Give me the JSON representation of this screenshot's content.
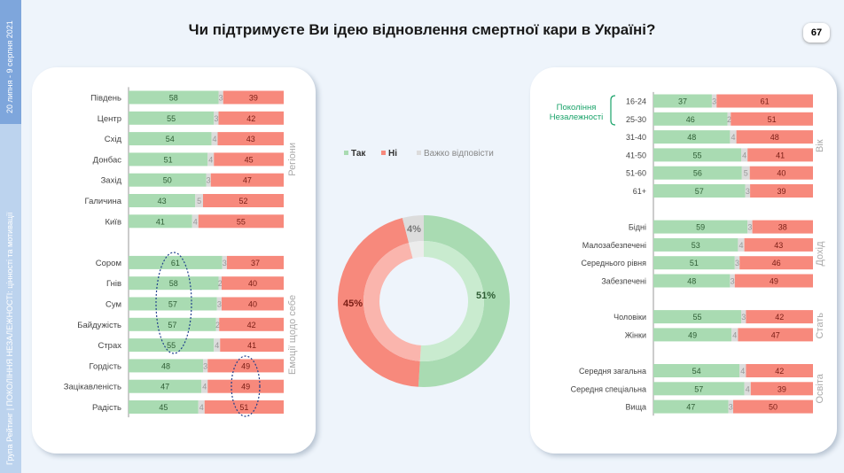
{
  "sidebar": {
    "dates": "20 липня - 9 серпня 2021",
    "footer": "Група Рейтинг | ПОКОЛІННЯ НЕЗАЛЕЖНОСТІ: цінності та мотивації"
  },
  "header": {
    "title": "Чи підтримуєте Ви ідею відновлення смертної кари в Україні?",
    "page_number": "67"
  },
  "colors": {
    "yes": "#a9dbb2",
    "no": "#f7897c",
    "hard": "#dcdcdc"
  },
  "annotation": {
    "generation_label_1": "Покоління",
    "generation_label_2": "Незалежності"
  },
  "chart_data": [
    {
      "type": "bar",
      "stacked": true,
      "orientation": "horizontal",
      "series_names": [
        "Так",
        "Важко відповісти",
        "Ні"
      ],
      "groups": [
        {
          "label": "Регіони",
          "rows": [
            {
              "label": "Південь",
              "values": [
                58,
                3,
                39
              ]
            },
            {
              "label": "Центр",
              "values": [
                55,
                3,
                42
              ]
            },
            {
              "label": "Схід",
              "values": [
                54,
                4,
                43
              ]
            },
            {
              "label": "Донбас",
              "values": [
                51,
                4,
                45
              ]
            },
            {
              "label": "Захід",
              "values": [
                50,
                3,
                47
              ]
            },
            {
              "label": "Галичина",
              "values": [
                43,
                5,
                52
              ]
            },
            {
              "label": "Київ",
              "values": [
                41,
                4,
                55
              ]
            }
          ]
        },
        {
          "label": "Емоції щодо себе",
          "rows": [
            {
              "label": "Сором",
              "values": [
                61,
                3,
                37
              ]
            },
            {
              "label": "Гнів",
              "values": [
                58,
                2,
                40
              ]
            },
            {
              "label": "Сум",
              "values": [
                57,
                3,
                40
              ]
            },
            {
              "label": "Байдужість",
              "values": [
                57,
                2,
                42
              ]
            },
            {
              "label": "Страх",
              "values": [
                55,
                4,
                41
              ]
            },
            {
              "label": "Гордість",
              "values": [
                48,
                3,
                49
              ]
            },
            {
              "label": "Зацікавленість",
              "values": [
                47,
                4,
                49
              ]
            },
            {
              "label": "Радість",
              "values": [
                45,
                4,
                51
              ]
            }
          ]
        }
      ]
    },
    {
      "type": "pie",
      "donut": true,
      "legend": [
        "Так",
        "Ні",
        "Важко відповісти"
      ],
      "legend_position": "top",
      "values": [
        51,
        45,
        4
      ],
      "labels": [
        "51%",
        "45%",
        "4%"
      ]
    },
    {
      "type": "bar",
      "stacked": true,
      "orientation": "horizontal",
      "series_names": [
        "Так",
        "Важко відповісти",
        "Ні"
      ],
      "groups": [
        {
          "label": "Вік",
          "rows": [
            {
              "label": "16-24",
              "values": [
                37,
                3,
                61
              ]
            },
            {
              "label": "25-30",
              "values": [
                46,
                2,
                51
              ]
            },
            {
              "label": "31-40",
              "values": [
                48,
                4,
                48
              ]
            },
            {
              "label": "41-50",
              "values": [
                55,
                4,
                41
              ]
            },
            {
              "label": "51-60",
              "values": [
                56,
                5,
                40
              ]
            },
            {
              "label": "61+",
              "values": [
                57,
                3,
                39
              ]
            }
          ]
        },
        {
          "label": "Дохід",
          "rows": [
            {
              "label": "Бідні",
              "values": [
                59,
                3,
                38
              ]
            },
            {
              "label": "Малозабезпечені",
              "values": [
                53,
                4,
                43
              ]
            },
            {
              "label": "Середнього рівня",
              "values": [
                51,
                3,
                46
              ]
            },
            {
              "label": "Забезпечені",
              "values": [
                48,
                3,
                49
              ]
            }
          ]
        },
        {
          "label": "Стать",
          "rows": [
            {
              "label": "Чоловіки",
              "values": [
                55,
                3,
                42
              ]
            },
            {
              "label": "Жінки",
              "values": [
                49,
                4,
                47
              ]
            }
          ]
        },
        {
          "label": "Освіта",
          "rows": [
            {
              "label": "Середня загальна",
              "values": [
                54,
                4,
                42
              ]
            },
            {
              "label": "Середня спеціальна",
              "values": [
                57,
                4,
                39
              ]
            },
            {
              "label": "Вища",
              "values": [
                47,
                3,
                50
              ]
            }
          ]
        }
      ]
    }
  ]
}
